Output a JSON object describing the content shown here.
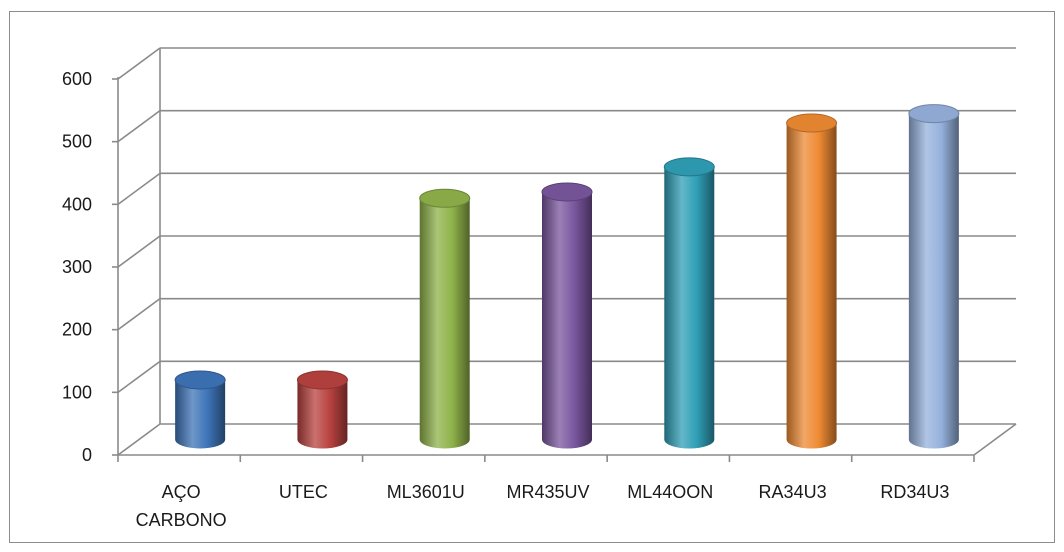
{
  "chart_data": {
    "type": "bar",
    "style": "3d-cylinder",
    "title": "",
    "xlabel": "",
    "ylabel": "",
    "ylim": [
      0,
      600
    ],
    "yticks": [
      0,
      100,
      200,
      300,
      400,
      500,
      600
    ],
    "grid": true,
    "legend": "none",
    "categories": [
      {
        "line1": "AÇO",
        "line2": "CARBONO"
      },
      {
        "line1": "UTEC",
        "line2": ""
      },
      {
        "line1": "ML3601U",
        "line2": ""
      },
      {
        "line1": "MR435UV",
        "line2": ""
      },
      {
        "line1": "ML44OON",
        "line2": ""
      },
      {
        "line1": "RA34U3",
        "line2": ""
      },
      {
        "line1": "RD34U3",
        "line2": ""
      }
    ],
    "values": [
      95,
      95,
      385,
      395,
      435,
      505,
      520
    ],
    "colors": [
      "#3d74b8",
      "#b8423f",
      "#8fb24a",
      "#7a569e",
      "#2f9fb6",
      "#ee8a33",
      "#95b1dc"
    ]
  }
}
